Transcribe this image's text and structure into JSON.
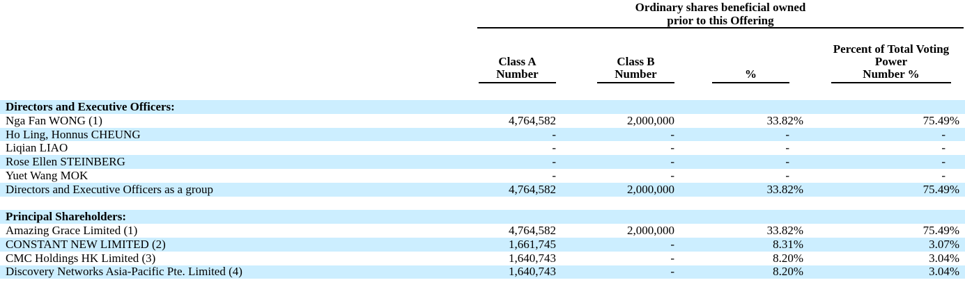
{
  "table": {
    "header": {
      "title_line1": "Ordinary shares beneficial owned",
      "title_line2": "prior to this Offering"
    },
    "columns": [
      {
        "line1": "Class A",
        "line2": "Number"
      },
      {
        "line1": "Class B",
        "line2": "Number"
      },
      {
        "label": "%"
      },
      {
        "line1": "Percent of Total Voting",
        "line2": "Power",
        "line3": "Number %"
      }
    ],
    "rows": [
      {
        "name": "Directors and Executive Officers:",
        "class_a": "",
        "class_b": "",
        "pct": "",
        "voting": ""
      },
      {
        "name": "Nga Fan WONG (1)",
        "class_a": "4,764,582",
        "class_b": "2,000,000",
        "pct": "33.82%",
        "voting": "75.49%"
      },
      {
        "name": "Ho Ling, Honnus CHEUNG",
        "class_a": "-",
        "class_b": "-",
        "pct": "-",
        "voting": "-"
      },
      {
        "name": "Liqian LIAO",
        "class_a": "-",
        "class_b": "-",
        "pct": "-",
        "voting": "-"
      },
      {
        "name": "Rose Ellen STEINBERG",
        "class_a": "-",
        "class_b": "-",
        "pct": "-",
        "voting": "-"
      },
      {
        "name": "Yuet Wang MOK",
        "class_a": "-",
        "class_b": "-",
        "pct": "-",
        "voting": "-"
      },
      {
        "name": "Directors and Executive Officers as a group",
        "class_a": "4,764,582",
        "class_b": "2,000,000",
        "pct": "33.82%",
        "voting": "75.49%"
      },
      {
        "name": "",
        "class_a": "",
        "class_b": "",
        "pct": "",
        "voting": ""
      },
      {
        "name": "Principal Shareholders:",
        "class_a": "",
        "class_b": "",
        "pct": "",
        "voting": ""
      },
      {
        "name": "Amazing Grace Limited (1)",
        "class_a": "4,764,582",
        "class_b": "2,000,000",
        "pct": "33.82%",
        "voting": "75.49%"
      },
      {
        "name": "CONSTANT NEW LIMITED (2)",
        "class_a": "1,661,745",
        "class_b": "-",
        "pct": "8.31%",
        "voting": "3.07%"
      },
      {
        "name": "CMC Holdings HK Limited (3)",
        "class_a": "1,640,743",
        "class_b": "-",
        "pct": "8.20%",
        "voting": "3.04%"
      },
      {
        "name": "Discovery Networks Asia-Pacific Pte. Limited (4)",
        "class_a": "1,640,743",
        "class_b": "-",
        "pct": "8.20%",
        "voting": "3.04%"
      }
    ],
    "colors": {
      "row_highlight": "#cceeff",
      "text": "#000000",
      "rule": "#000000"
    }
  }
}
